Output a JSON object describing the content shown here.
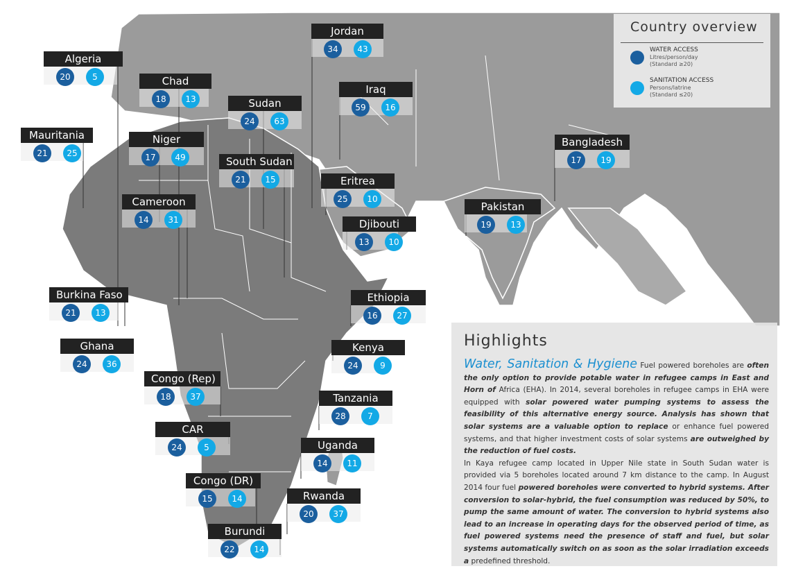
{
  "legend": {
    "title": "Country overview",
    "water": {
      "label": "WATER ACCESS",
      "unit": "Litres/person/day",
      "standard": "(Standard ≥20)",
      "color": "#1b5f9e"
    },
    "sanitation": {
      "label": "SANITATION ACCESS",
      "unit": "Persons/latrine",
      "standard": "(Standard ≤20)",
      "color": "#13a9e6"
    }
  },
  "countries": [
    {
      "name": "Algeria",
      "water": "20",
      "sanitation": "5"
    },
    {
      "name": "Chad",
      "water": "18",
      "sanitation": "13"
    },
    {
      "name": "Jordan",
      "water": "34",
      "sanitation": "43"
    },
    {
      "name": "Iraq",
      "water": "59",
      "sanitation": "16"
    },
    {
      "name": "Sudan",
      "water": "24",
      "sanitation": "63"
    },
    {
      "name": "Mauritania",
      "water": "21",
      "sanitation": "25"
    },
    {
      "name": "Niger",
      "water": "17",
      "sanitation": "49"
    },
    {
      "name": "South Sudan",
      "water": "21",
      "sanitation": "15"
    },
    {
      "name": "Eritrea",
      "water": "25",
      "sanitation": "10"
    },
    {
      "name": "Bangladesh",
      "water": "17",
      "sanitation": "19"
    },
    {
      "name": "Cameroon",
      "water": "14",
      "sanitation": "31"
    },
    {
      "name": "Pakistan",
      "water": "19",
      "sanitation": "13"
    },
    {
      "name": "Djibouti",
      "water": "13",
      "sanitation": "10"
    },
    {
      "name": "Burkina Faso",
      "water": "21",
      "sanitation": "13"
    },
    {
      "name": "Ethiopia",
      "water": "16",
      "sanitation": "27"
    },
    {
      "name": "Ghana",
      "water": "24",
      "sanitation": "36"
    },
    {
      "name": "Kenya",
      "water": "24",
      "sanitation": "9"
    },
    {
      "name": "Congo (Rep)",
      "water": "18",
      "sanitation": "37"
    },
    {
      "name": "Tanzania",
      "water": "28",
      "sanitation": "7"
    },
    {
      "name": "CAR",
      "water": "24",
      "sanitation": "5"
    },
    {
      "name": "Uganda",
      "water": "14",
      "sanitation": "11"
    },
    {
      "name": "Congo (DR)",
      "water": "15",
      "sanitation": "14"
    },
    {
      "name": "Rwanda",
      "water": "20",
      "sanitation": "37"
    },
    {
      "name": "Burundi",
      "water": "22",
      "sanitation": "14"
    }
  ],
  "highlights": {
    "title": "Highlights",
    "subtitle": "Water, Sanitation & Hygiene",
    "p1_a": "Fuel powered boreholes are",
    "p1_b": "often the only option to provide potable water in refugee camps in East and Horn of",
    "p1_c": "Africa (EHA). In 2014, several boreholes in refugee camps in EHA were equipped with",
    "p1_d": "solar powered water pumping systems to assess the feasibility of this alternative energy source. Analysis has shown that solar systems are a valuable option to replace",
    "p1_e": "or enhance fuel powered systems, and that higher investment costs of solar systems",
    "p1_f": "are outweighed by the reduction of fuel costs.",
    "p2_a": "In Kaya refugee camp located in Upper Nile state in South Sudan water is provided via 5 boreholes located around 7 km distance to the camp. In August 2014 four fuel",
    "p2_b": "powered boreholes were converted to hybrid systems. After conversion to solar-hybrid, the fuel consumption was reduced by 50%, to pump the same amount of water. The conversion to hybrid systems also lead to an increase in operating days for the observed period of time, as fuel powered systems need the presence of staff and fuel, but solar systems automatically switch on as soon as the solar irradiation exceeds a",
    "p2_c": "predefined threshold."
  }
}
